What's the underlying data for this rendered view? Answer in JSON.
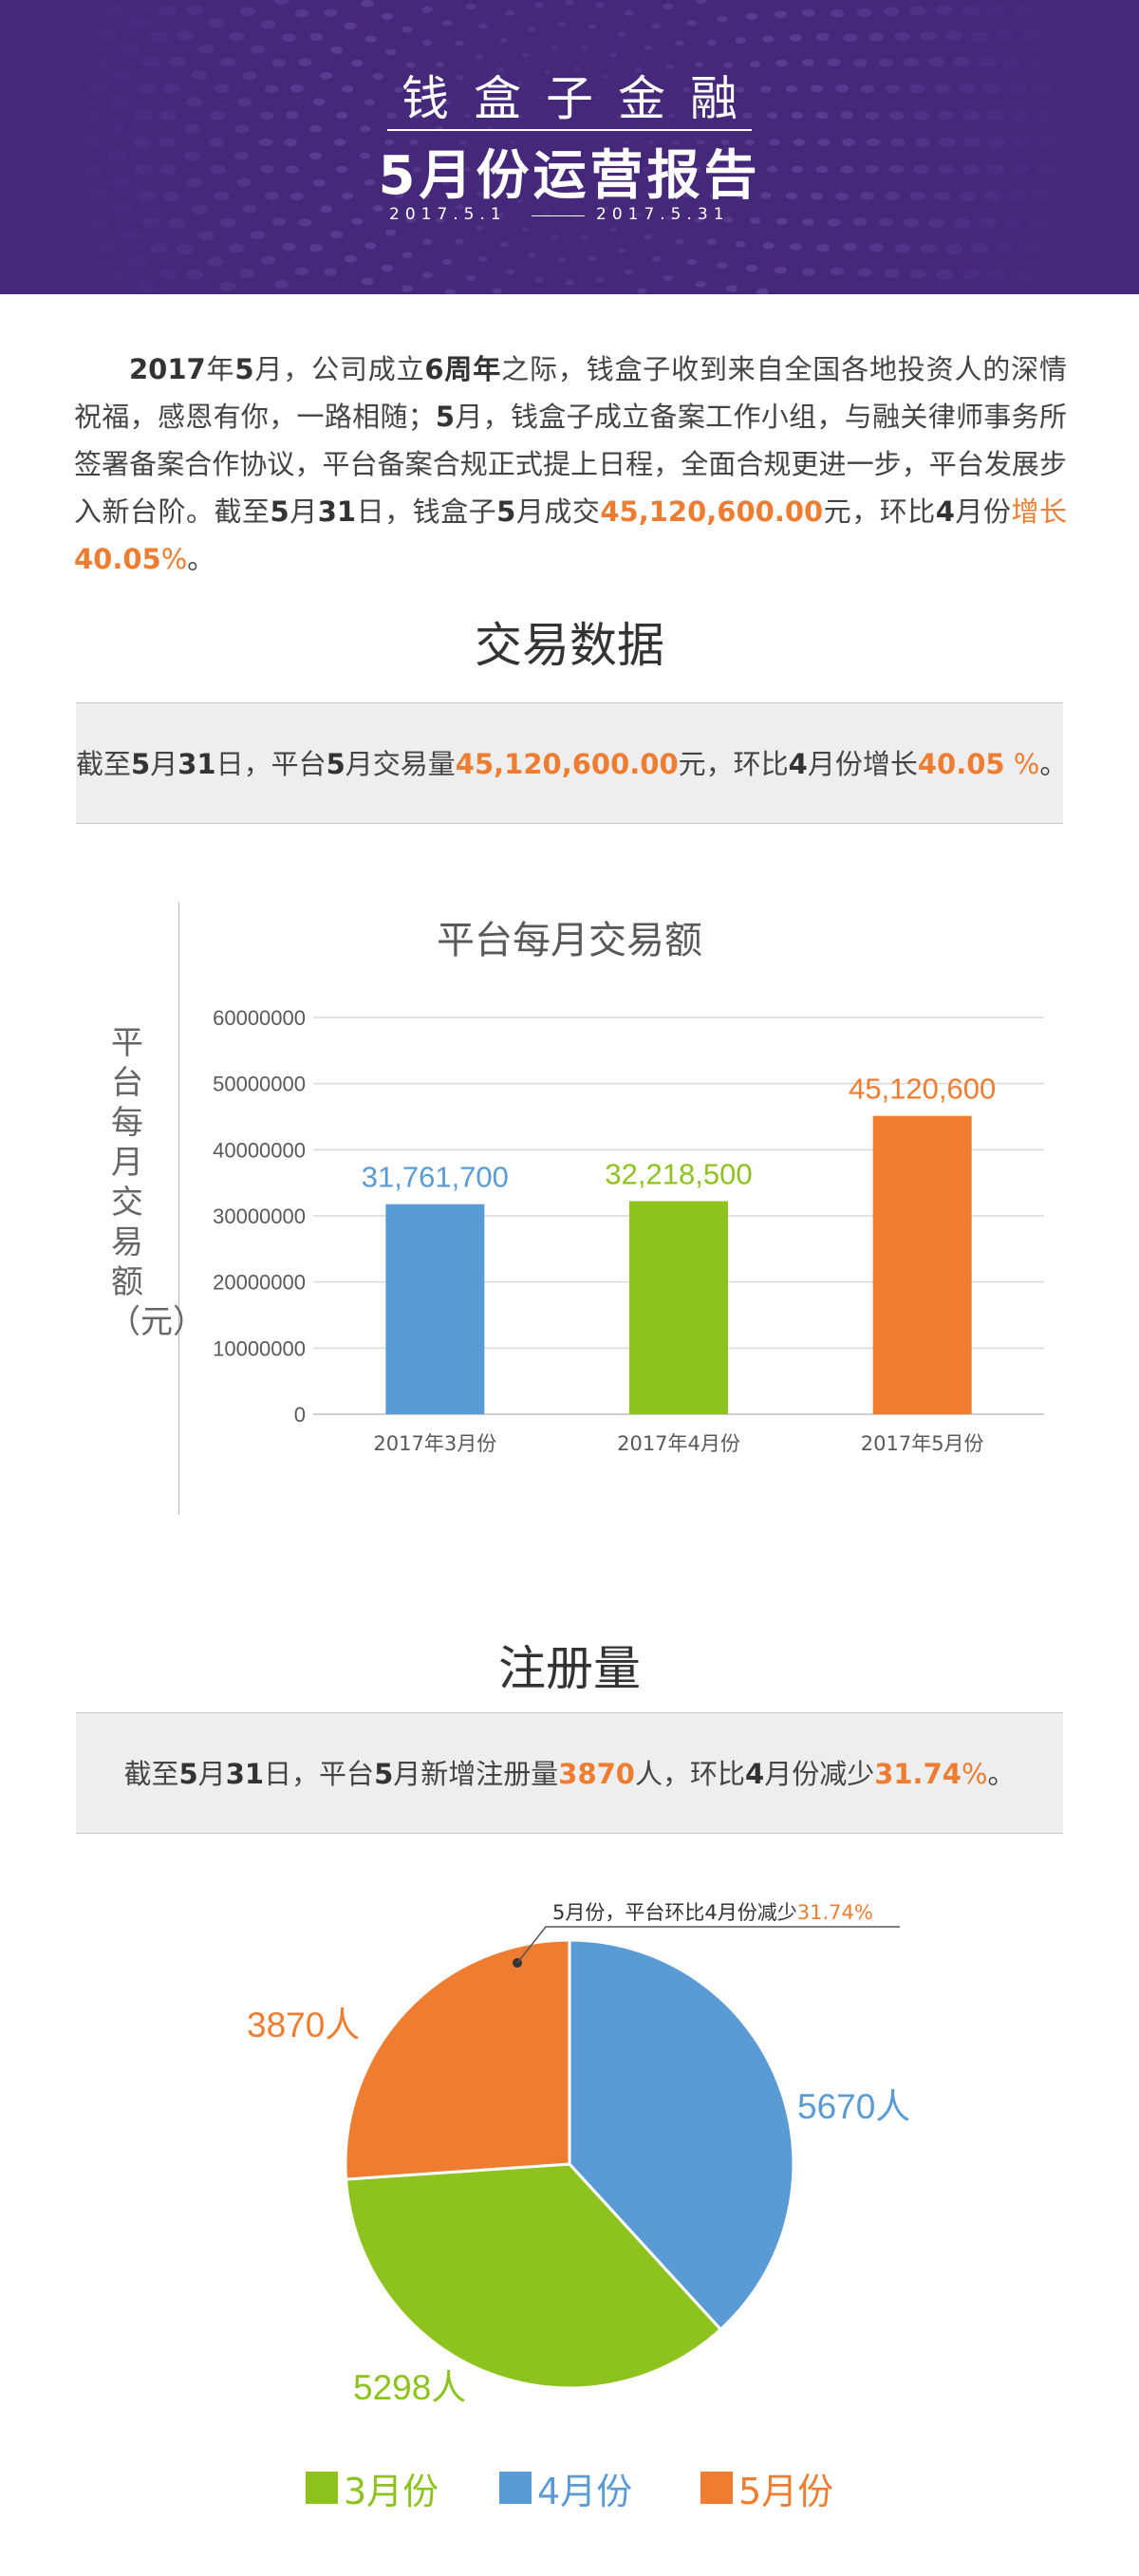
{
  "header": {
    "brand": "钱盒子金融",
    "title": "5月份运营报告",
    "date_start": "2017.5.1",
    "date_end": "2017.5.31"
  },
  "intro": {
    "p1": "2017",
    "p2": "年",
    "p3": "5",
    "p4": "月，公司成立",
    "p5": "6周年",
    "p6": "之际，钱盒子收到来自全国各地投资人的深情祝福，感恩有你，一路相随；",
    "p7": "5",
    "p8": "月，钱盒子成立备案工作小组，与融关律师事务所签署备案合作协议，平台备案合规正式提上日程，全面合规更进一步，平台发展步入新台阶。截至",
    "p9": "5",
    "p10": "月",
    "p11": "31",
    "p12": "日，钱盒子",
    "p13": "5",
    "p14": "月成交",
    "p15": "45,120,600.00",
    "p16": "元，环比",
    "p17": "4",
    "p18": "月份",
    "p19": "增长",
    "p20": "40.05",
    "p21": "%",
    "p22": "。"
  },
  "trade": {
    "title": "交易数据",
    "s1": "截至",
    "s2": "5",
    "s3": "月",
    "s4": "31",
    "s5": "日，平台",
    "s6": "5",
    "s7": "月交易量",
    "s8": "45,120,600.00",
    "s9": "元，环比",
    "s10": "4",
    "s11": "月份增长",
    "s12": "40.05",
    "s13": " %",
    "s14": "。"
  },
  "register": {
    "title": "注册量",
    "s1": "截至",
    "s2": "5",
    "s3": "月",
    "s4": "31",
    "s5": "日，平台",
    "s6": "5",
    "s7": "月新增注册量",
    "s8": "3870",
    "s9": "人，环比",
    "s10": "4",
    "s11": "月份减少",
    "s12": "31.74",
    "s13": "%",
    "s14": "。"
  },
  "chart_data": [
    {
      "type": "bar",
      "title": "平台每月交易额",
      "xlabel": "",
      "ylabel": "平台每月交易额（元）",
      "categories": [
        "2017年3月份",
        "2017年4月份",
        "2017年5月份"
      ],
      "values": [
        31761700,
        32218500,
        45120600
      ],
      "value_labels": [
        "31,761,700",
        "32,218,500",
        "45,120,600"
      ],
      "colors": [
        "#5b9bd5",
        "#8dc21f",
        "#ef7d31"
      ],
      "ylim": [
        0,
        60000000
      ],
      "yticks": [
        0,
        10000000,
        20000000,
        30000000,
        40000000,
        50000000,
        60000000
      ],
      "ytick_labels": [
        "0",
        "10000000",
        "20000000",
        "30000000",
        "40000000",
        "50000000",
        "60000000"
      ],
      "grid": true
    },
    {
      "type": "pie",
      "title": "",
      "labels": [
        "3月份",
        "4月份",
        "5月份"
      ],
      "values": [
        5298,
        5670,
        3870
      ],
      "value_labels": [
        "5298人",
        "5670人",
        "3870人"
      ],
      "colors": [
        "#8dc21f",
        "#5b9bd5",
        "#ef7d31"
      ],
      "annotation_prefix": "5月份，平台环比4月份减少",
      "annotation_value": "31.74%",
      "legend_position": "bottom"
    }
  ]
}
